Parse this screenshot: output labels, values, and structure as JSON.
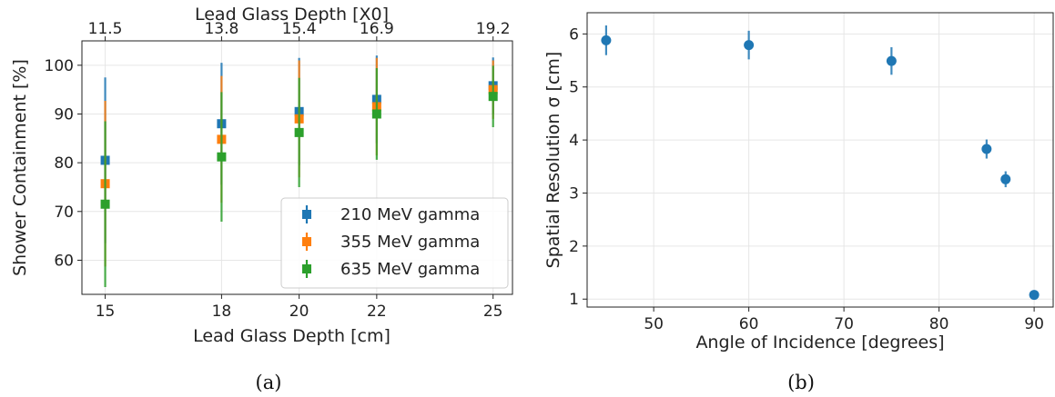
{
  "chart_data": [
    {
      "type": "scatter",
      "marker": "square",
      "panel_caption": "(a)",
      "xlabel": "Lead Glass Depth [cm]",
      "ylabel": "Shower Containment [%]",
      "top_xlabel": "Lead Glass Depth [X0]",
      "xlim": [
        14.4,
        25.5
      ],
      "ylim": [
        53,
        105
      ],
      "x_ticks": [
        15,
        18,
        20,
        22,
        25
      ],
      "x_tick_labels": [
        "15",
        "18",
        "20",
        "22",
        "25"
      ],
      "y_ticks": [
        60,
        70,
        80,
        90,
        100
      ],
      "y_tick_labels": [
        "60",
        "70",
        "80",
        "90",
        "100"
      ],
      "top_x_ticks": [
        15,
        18,
        20,
        22,
        25
      ],
      "top_x_tick_labels": [
        "11.5",
        "13.8",
        "15.4",
        "16.9",
        "19.2"
      ],
      "grid": true,
      "legend_position": "lower-right",
      "series": [
        {
          "name": "210 MeV gamma",
          "color": "#1f77b4",
          "x": [
            15,
            18,
            20,
            22,
            25
          ],
          "y": [
            80.5,
            88.0,
            90.5,
            93.0,
            95.8
          ],
          "yerr": [
            17.0,
            12.5,
            11.0,
            9.0,
            5.8
          ]
        },
        {
          "name": "355 MeV gamma",
          "color": "#ff7f0e",
          "x": [
            15,
            18,
            20,
            22,
            25
          ],
          "y": [
            75.7,
            84.8,
            89.0,
            91.5,
            95.0
          ],
          "yerr": [
            17.0,
            13.0,
            12.0,
            10.0,
            6.0
          ]
        },
        {
          "name": "635 MeV gamma",
          "color": "#2ca02c",
          "x": [
            15,
            18,
            20,
            22,
            25
          ],
          "y": [
            71.5,
            81.2,
            86.2,
            90.0,
            93.6
          ],
          "yerr": [
            17.0,
            13.3,
            11.2,
            9.4,
            6.3
          ]
        }
      ]
    },
    {
      "type": "scatter",
      "marker": "circle",
      "panel_caption": "(b)",
      "xlabel": "Angle of Incidence [degrees]",
      "ylabel": "Spatial Resolution σ [cm]",
      "xlim": [
        43,
        92
      ],
      "ylim": [
        0.85,
        6.4
      ],
      "x_ticks": [
        50,
        60,
        70,
        80,
        90
      ],
      "x_tick_labels": [
        "50",
        "60",
        "70",
        "80",
        "90"
      ],
      "y_ticks": [
        1,
        2,
        3,
        4,
        5,
        6
      ],
      "y_tick_labels": [
        "1",
        "2",
        "3",
        "4",
        "5",
        "6"
      ],
      "grid": true,
      "series": [
        {
          "color": "#1f77b4",
          "x": [
            45,
            60,
            75,
            85,
            87,
            90
          ],
          "y": [
            5.88,
            5.79,
            5.49,
            3.83,
            3.26,
            1.08
          ],
          "yerr": [
            0.28,
            0.27,
            0.26,
            0.18,
            0.15,
            0.04
          ]
        }
      ]
    }
  ]
}
